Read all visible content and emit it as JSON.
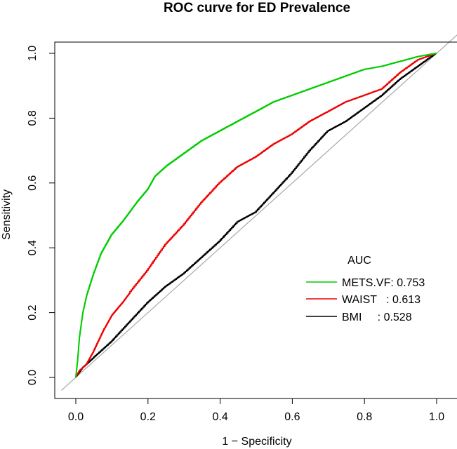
{
  "chart_data": {
    "type": "line",
    "title": "ROC curve for ED Prevalence",
    "xlabel": "1 − Specificity",
    "ylabel": "Sensitivity",
    "xlim": [
      0.0,
      1.0
    ],
    "ylim": [
      0.0,
      1.0
    ],
    "x_ticks": [
      "0.0",
      "0.2",
      "0.4",
      "0.6",
      "0.8",
      "1.0"
    ],
    "y_ticks": [
      "0.0",
      "0.2",
      "0.4",
      "0.6",
      "0.8",
      "1.0"
    ],
    "grid": false,
    "reference_line": "diagonal",
    "legend": {
      "title": "AUC",
      "position": "bottom-right",
      "entries": [
        {
          "label": "METS.VF: 0.753",
          "color": "#00cc00"
        },
        {
          "label": "WAIST   : 0.613",
          "color": "#ee0000"
        },
        {
          "label": "BMI     : 0.528",
          "color": "#000000"
        }
      ]
    },
    "series": [
      {
        "name": "METS.VF",
        "auc": 0.753,
        "color": "#00cc00",
        "x": [
          0.0,
          0.005,
          0.01,
          0.02,
          0.03,
          0.05,
          0.07,
          0.1,
          0.13,
          0.15,
          0.17,
          0.2,
          0.22,
          0.25,
          0.3,
          0.35,
          0.4,
          0.45,
          0.5,
          0.55,
          0.6,
          0.65,
          0.7,
          0.75,
          0.8,
          0.85,
          0.9,
          0.95,
          1.0
        ],
        "y": [
          0.0,
          0.05,
          0.12,
          0.2,
          0.25,
          0.32,
          0.38,
          0.44,
          0.48,
          0.51,
          0.54,
          0.58,
          0.62,
          0.65,
          0.69,
          0.73,
          0.76,
          0.79,
          0.82,
          0.85,
          0.87,
          0.89,
          0.91,
          0.93,
          0.95,
          0.96,
          0.975,
          0.99,
          1.0
        ]
      },
      {
        "name": "WAIST",
        "auc": 0.613,
        "color": "#ee0000",
        "x": [
          0.0,
          0.01,
          0.03,
          0.05,
          0.08,
          0.1,
          0.13,
          0.15,
          0.2,
          0.25,
          0.3,
          0.35,
          0.4,
          0.45,
          0.5,
          0.55,
          0.6,
          0.65,
          0.7,
          0.75,
          0.8,
          0.85,
          0.9,
          0.95,
          1.0
        ],
        "y": [
          0.0,
          0.02,
          0.04,
          0.08,
          0.15,
          0.19,
          0.23,
          0.26,
          0.33,
          0.41,
          0.47,
          0.54,
          0.6,
          0.65,
          0.68,
          0.72,
          0.75,
          0.79,
          0.82,
          0.85,
          0.87,
          0.89,
          0.94,
          0.98,
          1.0
        ]
      },
      {
        "name": "BMI",
        "auc": 0.528,
        "color": "#000000",
        "x": [
          0.0,
          0.02,
          0.05,
          0.1,
          0.15,
          0.2,
          0.25,
          0.3,
          0.35,
          0.4,
          0.45,
          0.5,
          0.55,
          0.6,
          0.65,
          0.7,
          0.75,
          0.8,
          0.85,
          0.9,
          0.95,
          1.0
        ],
        "y": [
          0.0,
          0.03,
          0.06,
          0.11,
          0.17,
          0.23,
          0.28,
          0.32,
          0.37,
          0.42,
          0.48,
          0.51,
          0.57,
          0.63,
          0.7,
          0.76,
          0.79,
          0.83,
          0.87,
          0.92,
          0.96,
          1.0
        ]
      }
    ]
  }
}
